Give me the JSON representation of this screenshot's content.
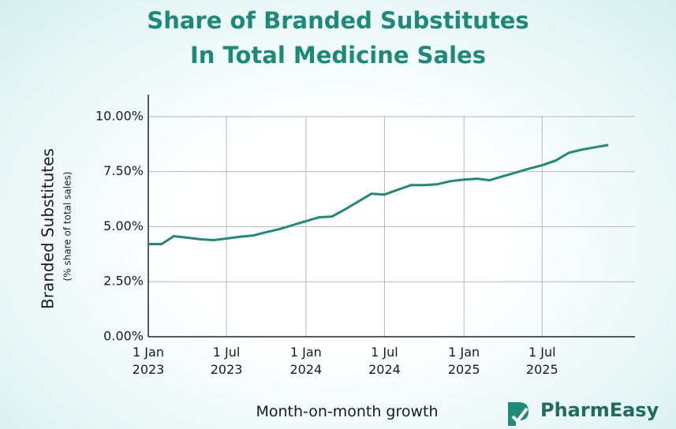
{
  "chart_data": {
    "type": "line",
    "title": "Share of Branded Substitutes In Total Medicine Sales",
    "x_label": "Month-on-month growth",
    "y_label": "Branded Substitutes",
    "y_sublabel": "(% share of total sales)",
    "x": [
      "2023-01-01",
      "2023-02-01",
      "2023-03-01",
      "2023-04-01",
      "2023-05-01",
      "2023-06-01",
      "2023-07-01",
      "2023-08-01",
      "2023-09-01",
      "2023-10-01",
      "2023-11-01",
      "2023-12-01",
      "2024-01-01",
      "2024-02-01",
      "2024-03-01",
      "2024-04-01",
      "2024-05-01",
      "2024-06-01",
      "2024-07-01",
      "2024-08-01",
      "2024-09-01",
      "2024-10-01",
      "2024-11-01",
      "2024-12-01",
      "2025-01-01",
      "2025-02-01",
      "2025-03-01",
      "2025-04-01",
      "2025-05-01",
      "2025-06-01",
      "2025-07-01",
      "2025-08-01",
      "2025-09-01",
      "2025-10-01",
      "2025-11-01",
      "2025-12-01"
    ],
    "series": [
      {
        "name": "Branded Substitutes",
        "color": "#1f8a78",
        "values": [
          4.21,
          4.21,
          4.57,
          4.5,
          4.43,
          4.39,
          4.46,
          4.54,
          4.6,
          4.75,
          4.89,
          5.07,
          5.25,
          5.43,
          5.46,
          5.79,
          6.14,
          6.5,
          6.46,
          6.68,
          6.89,
          6.89,
          6.93,
          7.07,
          7.14,
          7.18,
          7.11,
          7.29,
          7.46,
          7.64,
          7.79,
          8.0,
          8.36,
          8.5,
          8.61,
          8.71
        ]
      }
    ],
    "xlim": [
      "2023-01-01",
      "2026-02-01"
    ],
    "xticks": [
      {
        "value": "2023-01-01",
        "label": "1 Jan 2023"
      },
      {
        "value": "2023-07-01",
        "label": "1 Jul 2023"
      },
      {
        "value": "2024-01-01",
        "label": "1 Jan 2024"
      },
      {
        "value": "2024-07-01",
        "label": "1 Jul 2024"
      },
      {
        "value": "2025-01-01",
        "label": "1 Jan 2025"
      },
      {
        "value": "2025-07-01",
        "label": "1 Jul 2025"
      }
    ],
    "ylim": [
      0,
      11
    ],
    "yticks": [
      {
        "value": 0,
        "label": "0.00%"
      },
      {
        "value": 2.5,
        "label": "2.50%"
      },
      {
        "value": 5,
        "label": "5.00%"
      },
      {
        "value": 7.5,
        "label": "7.50%"
      },
      {
        "value": 10,
        "label": "10.00%"
      }
    ],
    "grid": true
  },
  "branding": {
    "name": "PharmEasy"
  }
}
